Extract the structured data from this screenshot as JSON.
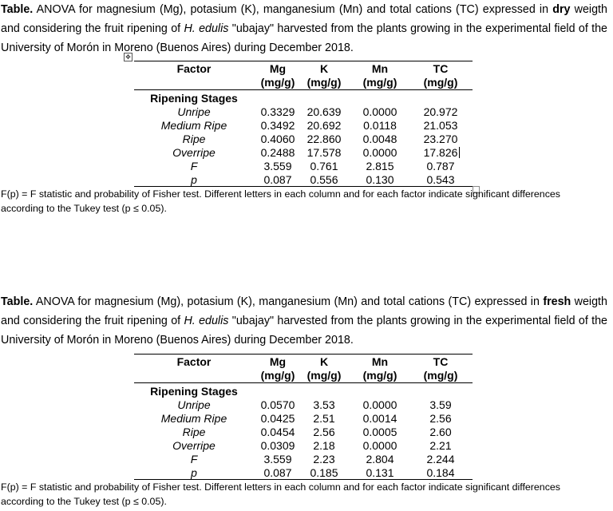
{
  "table1": {
    "caption_label": "Table.",
    "caption_pre": " ANOVA for magnesium (Mg), potasium (K), manganesium (Mn) and total cations (TC) expressed in ",
    "caption_bold": "dry",
    "caption_mid": " weigth and considering the fruit ripening of ",
    "caption_species": "H. edulis",
    "caption_post": " \"ubajay\" harvested from the plants growing in the experimental field of the University of Morón in Moreno (Buenos Aires) during December 2018.",
    "headers": [
      {
        "name": "Factor",
        "unit": ""
      },
      {
        "name": "Mg",
        "unit": "(mg/g)"
      },
      {
        "name": "K",
        "unit": "(mg/g)"
      },
      {
        "name": "Mn",
        "unit": "(mg/g)"
      },
      {
        "name": "TC",
        "unit": "(mg/g)"
      }
    ],
    "group_label": "Ripening Stages",
    "rows": [
      {
        "label": "Unripe",
        "mg": "0.3329",
        "k": "20.639",
        "mn": "0.0000",
        "tc": "20.972"
      },
      {
        "label": "Medium Ripe",
        "mg": "0.3492",
        "k": "20.692",
        "mn": "0.0118",
        "tc": "21.053"
      },
      {
        "label": "Ripe",
        "mg": "0.4060",
        "k": "22.860",
        "mn": "0.0048",
        "tc": "23.270"
      },
      {
        "label": "Overripe",
        "mg": "0.2488",
        "k": "17.578",
        "mn": "0.0000",
        "tc": "17.826"
      },
      {
        "label": "F",
        "mg": "3.559",
        "k": "0.761",
        "mn": "2.815",
        "tc": "0.787"
      },
      {
        "label": "p",
        "mg": "0.087",
        "k": "0.556",
        "mn": "0.130",
        "tc": "0.543"
      }
    ],
    "footnote_line1": "F(p) = F statistic and probability of Fisher test. Different letters in each column and for each factor indicate significant differences",
    "footnote_line2": "according to the Tukey test (p ≤ 0.05)."
  },
  "table2": {
    "caption_label": "Table.",
    "caption_pre": " ANOVA for magnesium (Mg), potasium (K), manganesium (Mn) and total cations (TC) expressed in ",
    "caption_bold": "fresh",
    "caption_mid": " weigth and considering the fruit ripening of ",
    "caption_species": "H. edulis",
    "caption_post": " \"ubajay\" harvested from the plants growing in the experimental field of the University of Morón in Moreno (Buenos Aires) during December 2018.",
    "headers": [
      {
        "name": "Factor",
        "unit": ""
      },
      {
        "name": "Mg",
        "unit": "(mg/g)"
      },
      {
        "name": "K",
        "unit": "(mg/g)"
      },
      {
        "name": "Mn",
        "unit": "(mg/g)"
      },
      {
        "name": "TC",
        "unit": "(mg/g)"
      }
    ],
    "group_label": "Ripening Stages",
    "rows": [
      {
        "label": "Unripe",
        "mg": "0.0570",
        "k": "3.53",
        "mn": "0.0000",
        "tc": "3.59"
      },
      {
        "label": "Medium Ripe",
        "mg": "0.0425",
        "k": "2.51",
        "mn": "0.0014",
        "tc": "2.56"
      },
      {
        "label": "Ripe",
        "mg": "0.0454",
        "k": "2.56",
        "mn": "0.0005",
        "tc": "2.60"
      },
      {
        "label": "Overripe",
        "mg": "0.0309",
        "k": "2.18",
        "mn": "0.0000",
        "tc": "2.21"
      },
      {
        "label": "F",
        "mg": "3.559",
        "k": "2.23",
        "mn": "2.804",
        "tc": "2.244"
      },
      {
        "label": "p",
        "mg": "0.087",
        "k": "0.185",
        "mn": "0.131",
        "tc": "0.184"
      }
    ],
    "footnote_line1": "F(p) = F statistic and probability of Fisher test. Different letters in each column and for each factor indicate significant differences",
    "footnote_line2": "according to the Tukey test (p ≤ 0.05)."
  }
}
